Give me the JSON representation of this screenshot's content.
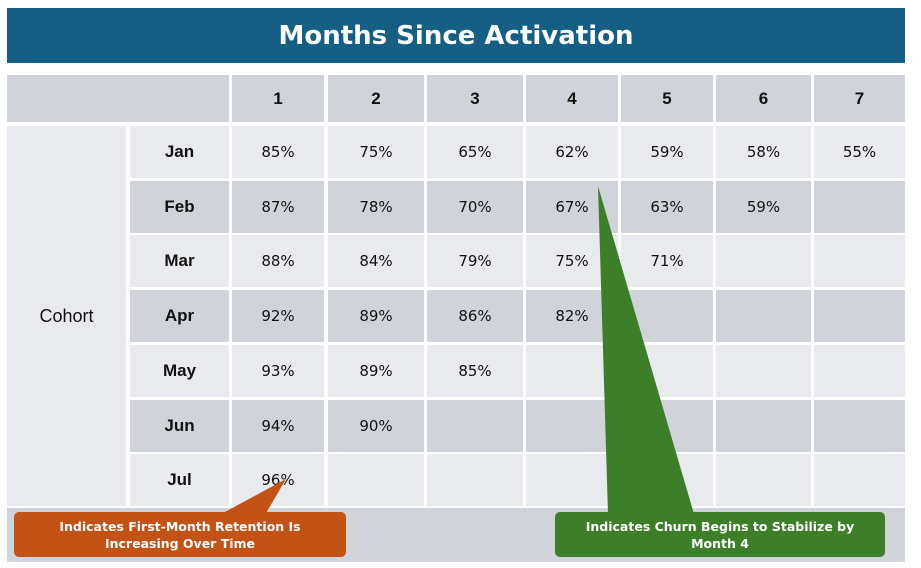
{
  "header": {
    "title": "Months Since Activation"
  },
  "columns": [
    "1",
    "2",
    "3",
    "4",
    "5",
    "6",
    "7"
  ],
  "row_group_label": "Cohort",
  "rows": [
    {
      "month": "Jan",
      "values": [
        "85%",
        "75%",
        "65%",
        "62%",
        "59%",
        "58%",
        "55%"
      ]
    },
    {
      "month": "Feb",
      "values": [
        "87%",
        "78%",
        "70%",
        "67%",
        "63%",
        "59%",
        ""
      ]
    },
    {
      "month": "Mar",
      "values": [
        "88%",
        "84%",
        "79%",
        "75%",
        "71%",
        "",
        ""
      ]
    },
    {
      "month": "Apr",
      "values": [
        "92%",
        "89%",
        "86%",
        "82%",
        "",
        "",
        ""
      ]
    },
    {
      "month": "May",
      "values": [
        "93%",
        "89%",
        "85%",
        "",
        "",
        "",
        ""
      ]
    },
    {
      "month": "Jun",
      "values": [
        "94%",
        "90%",
        "",
        "",
        "",
        "",
        ""
      ]
    },
    {
      "month": "Jul",
      "values": [
        "96%",
        "",
        "",
        "",
        "",
        "",
        ""
      ]
    }
  ],
  "callouts": {
    "first_month": {
      "line1": "Indicates First-Month Retention Is",
      "line2": "Increasing Over Time",
      "color": "#c25216"
    },
    "churn": {
      "line1": "Indicates Churn Begins to Stabilize by",
      "line2": "Month 4",
      "color": "#3d7f29"
    }
  },
  "colors": {
    "banner": "#155f85",
    "light_row": "#e8eaee",
    "dark_row": "#d0d4da"
  }
}
